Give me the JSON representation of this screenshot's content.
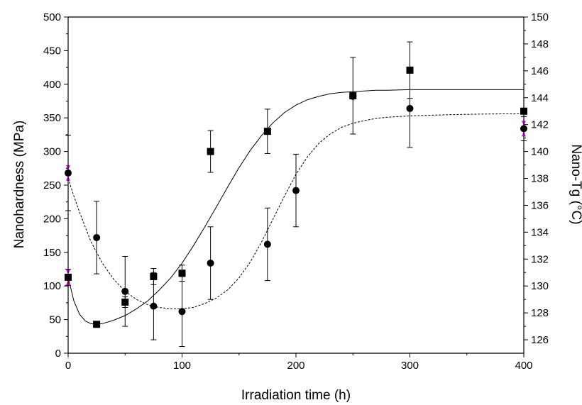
{
  "chart_data": {
    "type": "scatter",
    "title": "",
    "xlabel": "Irradiation time (h)",
    "ylabel_left": "Nanohardness (MPa)",
    "ylabel_right": "Nano-Tg (°C)",
    "xlim": [
      0,
      400
    ],
    "ylim_left": [
      0,
      500
    ],
    "ylim_right": [
      125,
      150
    ],
    "xticks": [
      0,
      100,
      200,
      300,
      400
    ],
    "yticks_left": [
      0,
      50,
      100,
      150,
      200,
      250,
      300,
      350,
      400,
      450,
      500
    ],
    "yticks_right": [
      126,
      128,
      130,
      132,
      134,
      136,
      138,
      140,
      142,
      144,
      146,
      148,
      150
    ],
    "grid": false,
    "legend": "none",
    "series": [
      {
        "axis": "left",
        "marker": "square",
        "x": [
          0,
          25,
          50,
          75,
          100,
          125,
          175,
          250,
          300,
          400
        ],
        "y": [
          113,
          43,
          76,
          114,
          119,
          300,
          330,
          383,
          421,
          360
        ],
        "err": [
          12,
          0,
          8,
          12,
          12,
          31,
          33,
          57,
          42,
          0
        ]
      },
      {
        "axis": "right",
        "marker": "circle",
        "x": [
          0,
          25,
          50,
          75,
          100,
          125,
          175,
          200,
          250,
          300,
          400
        ],
        "y": [
          138.4,
          133.6,
          129.6,
          128.5,
          128.1,
          131.7,
          133.1,
          137.1,
          144.1,
          143.2,
          141.7
        ],
        "err": [
          2.8,
          2.7,
          2.6,
          2.5,
          2.6,
          2.7,
          2.7,
          2.7,
          0,
          2.9,
          0.9
        ]
      }
    ],
    "fits": [
      {
        "axis": "left",
        "style": "solid",
        "x": [
          0,
          5,
          10,
          15,
          20,
          25,
          30,
          40,
          50,
          60,
          70,
          80,
          90,
          100,
          110,
          120,
          130,
          140,
          150,
          160,
          170,
          180,
          190,
          200,
          210,
          220,
          230,
          240,
          250,
          260,
          270,
          280,
          300,
          320,
          340,
          360,
          380,
          400
        ],
        "y": [
          113,
          78,
          58,
          48,
          44,
          43,
          44,
          49,
          56,
          66,
          78,
          94,
          112,
          134,
          160,
          188,
          217,
          247,
          276,
          302,
          324,
          343,
          358,
          369,
          377,
          382,
          386,
          388,
          389,
          390,
          391,
          391,
          392,
          392,
          392,
          392,
          392,
          392
        ]
      },
      {
        "axis": "right",
        "style": "dashed",
        "x": [
          0,
          5,
          10,
          20,
          30,
          40,
          50,
          60,
          70,
          80,
          90,
          100,
          110,
          120,
          130,
          140,
          150,
          160,
          170,
          180,
          190,
          200,
          210,
          220,
          230,
          240,
          250,
          260,
          270,
          280,
          300,
          320,
          340,
          360,
          380,
          400
        ],
        "y": [
          138.0,
          136.7,
          135.5,
          133.3,
          131.7,
          130.5,
          129.6,
          129.0,
          128.6,
          128.4,
          128.3,
          128.3,
          128.4,
          128.7,
          129.1,
          129.7,
          130.6,
          131.8,
          133.3,
          135.0,
          136.7,
          138.3,
          139.6,
          140.6,
          141.3,
          141.8,
          142.1,
          142.3,
          142.45,
          142.55,
          142.65,
          142.7,
          142.75,
          142.78,
          142.8,
          142.8
        ]
      }
    ],
    "accent_markers": {
      "color": "#ff00ff",
      "left_axis": [
        {
          "axis": "left",
          "y": 113
        },
        {
          "axis": "right",
          "y": 138.4
        }
      ],
      "right_axis": [
        {
          "axis": "right",
          "y": 141.7
        }
      ]
    }
  }
}
